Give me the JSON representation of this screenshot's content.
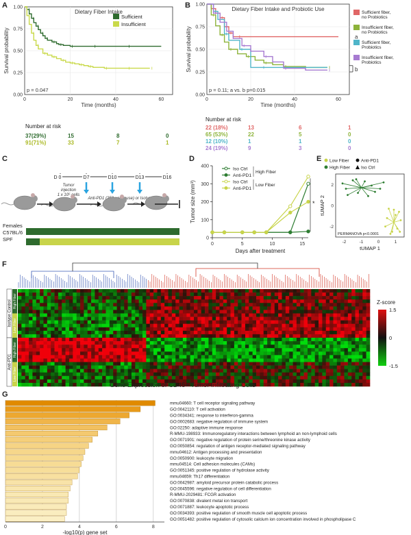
{
  "panels": {
    "A": {
      "letter": "A",
      "chart_data": {
        "type": "line",
        "title": "Dietary Fiber Intake",
        "xlabel": "Time (months)",
        "ylabel": "Survival probability",
        "xlim": [
          0,
          65
        ],
        "ylim": [
          0,
          1
        ],
        "xticks": [
          "0",
          "20",
          "40",
          "60"
        ],
        "yticks": [
          "0.00",
          "0.25",
          "0.50",
          "0.75",
          "1.00"
        ],
        "legend_position": "top-right",
        "series": [
          {
            "name": "Sufficient",
            "color": "#2e6b2e",
            "x": [
              0,
              1,
              2,
              3,
              4,
              5,
              6,
              7,
              8,
              9,
              10,
              12,
              14,
              15,
              17,
              20,
              25,
              30,
              40,
              45,
              60
            ],
            "y": [
              1,
              0.97,
              0.92,
              0.87,
              0.82,
              0.78,
              0.74,
              0.7,
              0.67,
              0.64,
              0.62,
              0.6,
              0.58,
              0.57,
              0.56,
              0.55,
              0.55,
              0.55,
              0.55,
              0.55,
              0.55
            ]
          },
          {
            "name": "Insufficient",
            "color": "#c9d94a",
            "x": [
              0,
              1,
              2,
              3,
              4,
              5,
              6,
              8,
              10,
              12,
              14,
              16,
              18,
              20,
              22,
              24,
              26,
              28,
              30,
              35,
              40,
              45,
              50,
              55
            ],
            "y": [
              1,
              0.9,
              0.8,
              0.7,
              0.62,
              0.56,
              0.52,
              0.47,
              0.45,
              0.43,
              0.41,
              0.39,
              0.37,
              0.36,
              0.35,
              0.34,
              0.33,
              0.32,
              0.31,
              0.3,
              0.3,
              0.3,
              0.3,
              0.3
            ]
          }
        ],
        "annotation": "p = 0.047"
      },
      "risk": {
        "title": "Number at risk",
        "rows": [
          {
            "color": "#2e6b2e",
            "values": [
              "37(29%)",
              "15",
              "8",
              "0"
            ]
          },
          {
            "color": "#a9b820",
            "values": [
              "91(71%)",
              "33",
              "7",
              "1"
            ]
          }
        ]
      }
    },
    "B": {
      "letter": "B",
      "chart_data": {
        "type": "line",
        "title": "Dietary Fiber Intake and Probiotic Use",
        "xlabel": "Time (months)",
        "ylabel": "Survival probability",
        "xlim": [
          0,
          65
        ],
        "ylim": [
          0,
          1
        ],
        "xticks": [
          "0",
          "20",
          "40",
          "60"
        ],
        "yticks": [
          "0.00",
          "0.25",
          "0.50",
          "0.75",
          "1.00"
        ],
        "legend_position": "right",
        "series": [
          {
            "name": "Sufficient fiber, no Probiotics",
            "color": "#e06666",
            "x": [
              0,
              2,
              4,
              6,
              8,
              10,
              12,
              14,
              60
            ],
            "y": [
              1,
              0.95,
              0.9,
              0.85,
              0.75,
              0.68,
              0.64,
              0.64,
              0.64
            ]
          },
          {
            "name": "Insufficient fiber, no Probiotics",
            "color": "#8db33a",
            "x": [
              0,
              2,
              4,
              6,
              8,
              10,
              14,
              18,
              22,
              26,
              30,
              35,
              45,
              55
            ],
            "y": [
              1,
              0.88,
              0.76,
              0.66,
              0.58,
              0.5,
              0.45,
              0.42,
              0.38,
              0.35,
              0.33,
              0.31,
              0.3,
              0.3
            ]
          },
          {
            "name": "Sufficient fiber, Probiotics",
            "color": "#4fb5c9",
            "x": [
              0,
              3,
              5,
              8,
              10,
              15,
              20,
              25,
              55
            ],
            "y": [
              1,
              0.92,
              0.83,
              0.67,
              0.6,
              0.5,
              0.3,
              0.3,
              0.3
            ]
          },
          {
            "name": "Insufficient fiber, Probiotics",
            "color": "#a77bd1",
            "x": [
              0,
              3,
              6,
              9,
              12,
              16,
              20,
              26,
              30,
              35,
              45,
              55
            ],
            "y": [
              1,
              0.9,
              0.8,
              0.7,
              0.62,
              0.54,
              0.48,
              0.42,
              0.36,
              0.29,
              0.27,
              0.27
            ]
          }
        ],
        "annotation": "p = 0.11; a vs. b p=0.015",
        "labels": [
          "a",
          "b"
        ]
      },
      "risk": {
        "title": "Number at risk",
        "rows": [
          {
            "color": "#e06666",
            "values": [
              "22 (18%)",
              "13",
              "6",
              "1"
            ]
          },
          {
            "color": "#8db33a",
            "values": [
              "65 (53%)",
              "22",
              "5",
              "0"
            ]
          },
          {
            "color": "#4fb5c9",
            "values": [
              "12 (10%)",
              "1",
              "1",
              "0"
            ]
          },
          {
            "color": "#a77bd1",
            "values": [
              "24 (19%)",
              "9",
              "3",
              "0"
            ]
          }
        ]
      }
    },
    "C": {
      "letter": "C",
      "timeline": [
        "D 0",
        "D7",
        "D10",
        "D13",
        "D16"
      ],
      "injection_text": "Tumor injection 1 x 10⁵ cells",
      "treatment_text": "Anti-PD1 (250 μg/mouse) or Isotype control",
      "cohort": "Females C57BL/6 SPF"
    },
    "D": {
      "letter": "D",
      "chart_data": {
        "type": "line",
        "xlabel": "Days after treatment",
        "ylabel": "Tumor size (mm³)",
        "ylim": [
          0,
          400
        ],
        "xlim": [
          0,
          16
        ],
        "xticks": [
          "0",
          "5",
          "10",
          "15"
        ],
        "yticks": [
          "0",
          "100",
          "200",
          "300",
          "400"
        ],
        "x": [
          0,
          2,
          5,
          7,
          9,
          13,
          16
        ],
        "series": [
          {
            "name": "Iso Ctrl",
            "group": "High Fiber",
            "color": "#2e7d32",
            "marker": "open",
            "values": [
              30,
              30,
              30,
              30,
              30,
              30,
              300
            ]
          },
          {
            "name": "Anti-PD1",
            "group": "High Fiber",
            "color": "#2e7d32",
            "marker": "filled",
            "values": [
              30,
              30,
              30,
              30,
              30,
              30,
              35
            ]
          },
          {
            "name": "Iso Ctrl",
            "group": "Low Fiber",
            "color": "#c8d44a",
            "marker": "open",
            "values": [
              30,
              30,
              30,
              30,
              30,
              175,
              340
            ]
          },
          {
            "name": "Anti-PD1",
            "group": "Low Fiber",
            "color": "#c8d44a",
            "marker": "filled",
            "values": [
              30,
              30,
              30,
              30,
              30,
              140,
              200
            ]
          }
        ],
        "groups": [
          "High Fiber",
          "Low Fiber"
        ],
        "significance": "*"
      }
    },
    "E": {
      "letter": "E",
      "chart_data": {
        "type": "scatter",
        "xlabel": "tUMAP 1",
        "ylabel": "tUMAP 2",
        "xlim": [
          -2.5,
          1.5
        ],
        "ylim": [
          -3,
          3
        ],
        "xticks": [
          "-2",
          "-1",
          "0",
          "1"
        ],
        "yticks": [
          "-2",
          "0",
          "2"
        ],
        "legend": [
          {
            "label": "Low Fiber",
            "color": "#c8d44a",
            "shape": "circle"
          },
          {
            "label": "Anti-PD1",
            "color": "#111111",
            "shape": "circle"
          },
          {
            "label": "High Fiber",
            "color": "#2e7d32",
            "shape": "circle"
          },
          {
            "label": "Iso Ctrl",
            "color": "#111111",
            "shape": "triangle"
          }
        ],
        "clusters": [
          {
            "color": "#2e7d32",
            "center": [
              -1,
              1.7
            ]
          },
          {
            "color": "#c8d44a",
            "center": [
              0.9,
              -1.6
            ]
          }
        ],
        "annotation": "PERMANOVA p<0.0001"
      }
    },
    "F": {
      "letter": "F",
      "title": "Gene Expression of CD45+ Tumor Infiltrating Cells",
      "row_groups": [
        "Isotype Control",
        "Anti-PD1"
      ],
      "row_subgroups": [
        "High Fiber",
        "Low Fiber",
        "High Fiber",
        "Low Fiber"
      ],
      "legend_title": "Z-score",
      "legend_ticks": [
        "1.5",
        "0",
        "-1.5"
      ]
    },
    "G": {
      "letter": "G",
      "chart_data": {
        "type": "bar",
        "xlabel": "-log10(p) gene set",
        "xlim": [
          0,
          8.6
        ],
        "xticks": [
          "0",
          "2",
          "4",
          "6",
          "8"
        ],
        "categories": [
          "mmu04660: T cell receptor signaling pathway",
          "GO:0042110: T cell activation",
          "GO:0034341: response to interferon-gamma",
          "GO:0002683: negative regulation of immune system",
          "GO:02250: adaptive immune response",
          "R-MMU-198933: Immunoregulatory interactions between lymphoid an non-lymphoid cells",
          "GO:0071901: negative regulation of protein serine/threonine kinase activity",
          "GO:0050854: regulation of antigen receptor-mediated signaling pathway",
          "mmu04612: Antigen processing and presentation",
          "GO:0050900: leukocyte migration",
          "mmu04514: Cell adhesion molecules (CAMs)",
          "GO:0051345: positive regulation of hydrolase activity",
          "mmu04659: Th17 differentiation",
          "GO:0042987: amyloid precursor protein catabolic process",
          "GO:0045596: negative regulation of cell differentiation",
          "R-MMU-2029481: FCGR activation",
          "GO:0070838: divalent metal ion transport",
          "GO:0071887: leukocyte apoptotic process",
          "GO:0034393: positive regulation of smooth muscle cell apoptotic process",
          "GO:0051482: positive regulation of cytosolic calcium ion concentration involved in phospholipase C"
        ],
        "values": [
          8.1,
          7.3,
          6.7,
          6.2,
          5.5,
          5.0,
          4.7,
          4.5,
          4.3,
          4.2,
          4.1,
          4.0,
          3.9,
          3.6,
          3.5,
          3.4,
          3.4,
          3.3,
          3.3,
          3.2
        ],
        "bar_colors": [
          "#e08a00",
          "#e89a1a",
          "#eda830",
          "#f0b54a",
          "#f2c060",
          "#f4c96f",
          "#f5cf7a",
          "#f6d485",
          "#f6d78b",
          "#f7da90",
          "#f7dc95",
          "#f7de9a",
          "#f8e0a0",
          "#f8e3a8",
          "#f9e6ae",
          "#f9e8b3",
          "#f9e9b6",
          "#faebba",
          "#faedbf",
          "#fbefc4"
        ]
      }
    }
  }
}
